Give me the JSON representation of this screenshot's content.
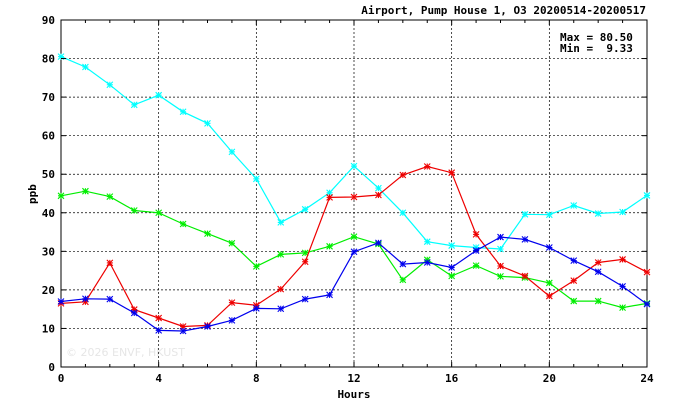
{
  "chart_data": {
    "type": "line",
    "title": "Airport, Pump House 1, O3 20200514-20200517",
    "xlabel": "Hours",
    "ylabel": "ppb",
    "xlim": [
      0,
      24
    ],
    "ylim": [
      0,
      90
    ],
    "xticks": [
      0,
      4,
      8,
      12,
      16,
      20,
      24
    ],
    "yticks": [
      0,
      10,
      20,
      30,
      40,
      50,
      60,
      70,
      80,
      90
    ],
    "grid": true,
    "stats": {
      "max_label": "Max = 80.50",
      "min_label": "Min =  9.33"
    },
    "watermark": "© 2026 ENVF, HKUST",
    "x": [
      0,
      1,
      2,
      3,
      4,
      5,
      6,
      7,
      8,
      9,
      10,
      11,
      12,
      13,
      14,
      15,
      16,
      17,
      18,
      19,
      20,
      21,
      22,
      23,
      24
    ],
    "series": [
      {
        "color": "#00ffff",
        "values": [
          80.5,
          77.8,
          73.2,
          68.0,
          70.5,
          66.2,
          63.2,
          55.8,
          48.8,
          37.5,
          40.9,
          45.2,
          52.1,
          46.4,
          40.0,
          32.5,
          31.5,
          31.0,
          30.6,
          39.6,
          39.5,
          41.9,
          39.8,
          40.2,
          44.5
        ]
      },
      {
        "color": "#00ee00",
        "values": [
          44.4,
          45.6,
          44.2,
          40.6,
          40.0,
          37.1,
          34.6,
          32.1,
          26.1,
          29.2,
          29.6,
          31.3,
          33.8,
          31.9,
          22.6,
          27.8,
          23.6,
          26.3,
          23.5,
          23.2,
          21.8,
          17.1,
          17.1,
          15.4,
          16.5
        ]
      },
      {
        "color": "#ee0000",
        "values": [
          16.5,
          16.9,
          27.0,
          14.9,
          12.7,
          10.5,
          10.8,
          16.7,
          16.0,
          20.2,
          27.3,
          44.0,
          44.1,
          44.6,
          49.8,
          52.0,
          50.4,
          34.4,
          26.2,
          23.6,
          18.4,
          22.4,
          27.1,
          27.9,
          24.6
        ]
      },
      {
        "color": "#0000ee",
        "values": [
          17.0,
          17.7,
          17.6,
          14.0,
          9.5,
          9.33,
          10.5,
          12.1,
          15.2,
          15.1,
          17.6,
          18.7,
          29.9,
          32.2,
          26.7,
          27.1,
          25.8,
          30.2,
          33.7,
          33.1,
          31.0,
          27.6,
          24.7,
          20.9,
          16.3
        ]
      }
    ]
  }
}
